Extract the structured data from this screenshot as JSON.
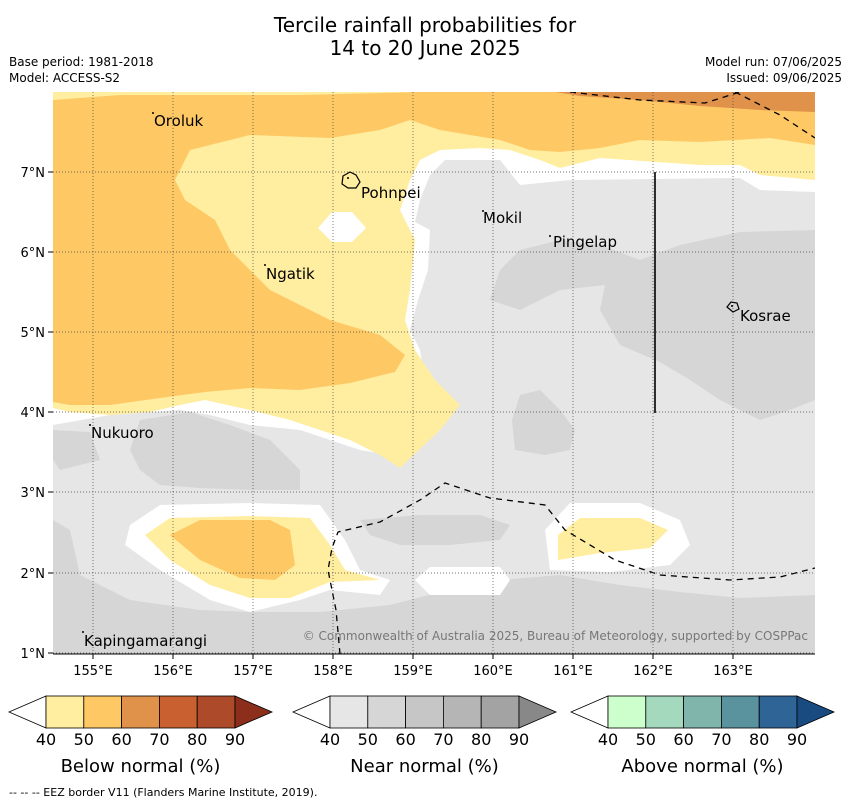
{
  "title_line1": "Tercile rainfall probabilities for",
  "title_line2": "14 to 20 June 2025",
  "base_period": "Base period: 1981-2018",
  "model": "Model: ACCESS-S2",
  "model_run": "Model run: 07/06/2025",
  "issued": "Issued: 09/06/2025",
  "copyright": "© Commonwealth of Australia 2025, Bureau of Meteorology, supported by COSPPac",
  "footer": "--  --  -- EEZ border V11 (Flanders Marine Institute, 2019).",
  "lon_labels": [
    "155°E",
    "156°E",
    "157°E",
    "158°E",
    "159°E",
    "160°E",
    "161°E",
    "162°E",
    "163°E"
  ],
  "lat_labels": [
    "7°N",
    "6°N",
    "5°N",
    "4°N",
    "3°N",
    "2°N",
    "1°N"
  ],
  "places": [
    {
      "name": "Oroluk"
    },
    {
      "name": "Pohnpei"
    },
    {
      "name": "Mokil"
    },
    {
      "name": "Pingelap"
    },
    {
      "name": "Ngatik"
    },
    {
      "name": "Kosrae"
    },
    {
      "name": "Nukuoro"
    },
    {
      "name": "Kapingamarangi"
    }
  ],
  "colorbars": [
    {
      "label": "Below normal (%)",
      "ticks": [
        "40",
        "50",
        "60",
        "70",
        "80",
        "90"
      ],
      "colors": [
        "#ffffff",
        "#ffeda0",
        "#fec965",
        "#e0914a",
        "#c8612f",
        "#ad4a29",
        "#8b2f1c"
      ]
    },
    {
      "label": "Near normal (%)",
      "ticks": [
        "40",
        "50",
        "60",
        "70",
        "80",
        "90"
      ],
      "colors": [
        "#ffffff",
        "#e6e6e6",
        "#d6d6d6",
        "#c6c6c6",
        "#b5b5b5",
        "#a3a3a3",
        "#888888"
      ]
    },
    {
      "label": "Above normal (%)",
      "ticks": [
        "40",
        "50",
        "60",
        "70",
        "80",
        "90"
      ],
      "colors": [
        "#ffffff",
        "#ccffcc",
        "#a4d9bd",
        "#80b5ac",
        "#5a929e",
        "#2f6596",
        "#194b80"
      ]
    }
  ],
  "colors": {
    "below_50": "#ffeda0",
    "below_60": "#fec965",
    "below_70": "#e0914a",
    "near_40": "#e6e6e6",
    "near_50": "#d6d6d6"
  }
}
